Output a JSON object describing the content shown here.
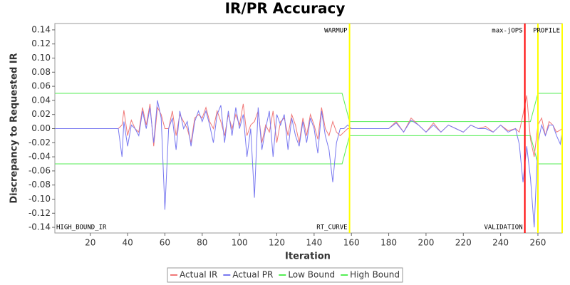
{
  "chart_data": {
    "type": "line",
    "title": "IR/PR Accuracy",
    "x_label": "Iteration",
    "y_label": "Discrepancy to Requested IR",
    "xlim": [
      1,
      273
    ],
    "ylim": [
      -0.148,
      0.149
    ],
    "xticks": [
      20,
      40,
      60,
      80,
      100,
      120,
      140,
      160,
      180,
      200,
      220,
      240,
      260
    ],
    "yticks": [
      {
        "value": -0.14,
        "label": "-0.14"
      },
      {
        "value": -0.12,
        "label": "-0.12"
      },
      {
        "value": -0.1,
        "label": "-0.10"
      },
      {
        "value": -0.08,
        "label": "-0.08"
      },
      {
        "value": -0.06,
        "label": "-0.06"
      },
      {
        "value": -0.04,
        "label": "-0.04"
      },
      {
        "value": -0.02,
        "label": "-0.02"
      },
      {
        "value": 0,
        "label": "0.00"
      },
      {
        "value": 0.02,
        "label": "0.02"
      },
      {
        "value": 0.04,
        "label": "0.04"
      },
      {
        "value": 0.06,
        "label": "0.06"
      },
      {
        "value": 0.08,
        "label": "0.08"
      },
      {
        "value": 0.1,
        "label": "0.10"
      },
      {
        "value": 0.12,
        "label": "0.12"
      },
      0.14
    ],
    "grid": false,
    "legend": "bottom",
    "markers": [
      {
        "x": 1,
        "bottom": "HIGH_BOUND_IR"
      },
      {
        "x": 159,
        "top": "WARMUP",
        "bottom": "RT_CURVE",
        "color": "#ffff00"
      },
      {
        "x": 253,
        "top": "max-jOPS",
        "bottom": "VALIDATION",
        "color": "#ff0000"
      },
      {
        "x": 260,
        "color": "#ffff00"
      },
      {
        "x": 273,
        "top": "PROFILE",
        "color": "#ffff00"
      }
    ],
    "series": [
      {
        "name": "Actual IR",
        "color": "#f07878",
        "x": [
          1,
          35,
          37,
          38,
          40,
          42,
          44,
          46,
          48,
          50,
          52,
          54,
          56,
          58,
          60,
          62,
          64,
          66,
          68,
          70,
          72,
          74,
          76,
          78,
          80,
          82,
          84,
          86,
          88,
          90,
          92,
          94,
          96,
          98,
          100,
          102,
          104,
          106,
          108,
          110,
          112,
          114,
          116,
          118,
          120,
          122,
          124,
          126,
          128,
          130,
          132,
          134,
          136,
          138,
          140,
          142,
          144,
          146,
          148,
          150,
          152,
          154,
          156,
          158,
          160,
          180,
          184,
          188,
          192,
          196,
          200,
          204,
          208,
          212,
          216,
          220,
          224,
          228,
          232,
          236,
          240,
          244,
          248,
          250,
          252,
          254,
          256,
          258,
          260,
          262,
          264,
          266,
          268,
          270,
          272,
          273
        ],
        "values": [
          0,
          0,
          0.005,
          0.026,
          -0.01,
          0.012,
          0,
          -0.005,
          0.03,
          0.005,
          0.035,
          -0.025,
          0.03,
          0.02,
          0,
          0,
          0.025,
          -0.01,
          0.02,
          0.01,
          0,
          -0.02,
          0.015,
          0.02,
          0.015,
          0.03,
          0.01,
          0,
          0.025,
          0.01,
          -0.01,
          0.02,
          0,
          0.02,
          0.005,
          0.035,
          -0.01,
          0.005,
          0.01,
          0.025,
          -0.02,
          0.005,
          -0.005,
          0.025,
          -0.02,
          0.01,
          0.015,
          -0.01,
          0.02,
          0.005,
          -0.02,
          0.015,
          -0.01,
          0.02,
          0.005,
          -0.015,
          0.03,
          0,
          -0.01,
          0.01,
          -0.005,
          -0.01,
          -0.005,
          0,
          0,
          0,
          0.01,
          -0.005,
          0.015,
          0.005,
          -0.005,
          0.008,
          -0.005,
          0.005,
          0,
          -0.005,
          0.005,
          0,
          0.003,
          -0.005,
          0.005,
          -0.003,
          0,
          -0.005,
          0.02,
          0.047,
          -0.015,
          -0.04,
          0.005,
          0.015,
          -0.01,
          0.01,
          0.005,
          -0.005,
          -0.002,
          0
        ]
      },
      {
        "name": "Actual PR",
        "color": "#7878f0",
        "x": [
          1,
          35,
          37,
          38,
          40,
          42,
          44,
          46,
          48,
          50,
          52,
          54,
          56,
          58,
          60,
          62,
          64,
          66,
          68,
          70,
          72,
          74,
          76,
          78,
          80,
          82,
          84,
          86,
          88,
          90,
          92,
          94,
          96,
          98,
          100,
          102,
          104,
          106,
          108,
          110,
          112,
          114,
          116,
          118,
          120,
          122,
          124,
          126,
          128,
          130,
          132,
          134,
          136,
          138,
          140,
          142,
          144,
          146,
          148,
          150,
          152,
          154,
          156,
          158,
          160,
          180,
          184,
          188,
          192,
          196,
          200,
          204,
          208,
          212,
          216,
          220,
          224,
          228,
          232,
          236,
          240,
          244,
          248,
          250,
          252,
          254,
          256,
          258,
          260,
          262,
          264,
          266,
          268,
          270,
          272,
          273
        ],
        "values": [
          0,
          0,
          -0.04,
          0.01,
          -0.025,
          0.005,
          0,
          -0.01,
          0.025,
          0,
          0.03,
          -0.02,
          0.04,
          0.015,
          -0.115,
          0,
          0.015,
          -0.03,
          0.025,
          0,
          0.01,
          -0.025,
          0.01,
          0.025,
          0.01,
          0.025,
          0.005,
          -0.02,
          0.02,
          0.033,
          -0.02,
          0.025,
          -0.01,
          0.03,
          0,
          0.02,
          -0.04,
          0,
          -0.098,
          0.03,
          -0.03,
          0,
          0.025,
          -0.04,
          0.02,
          0.005,
          0.02,
          -0.03,
          0.015,
          -0.01,
          -0.025,
          0.01,
          -0.02,
          0.015,
          0,
          -0.035,
          0.025,
          -0.01,
          -0.03,
          -0.076,
          -0.02,
          0,
          0,
          0.005,
          0,
          0,
          0.008,
          -0.005,
          0.012,
          0.005,
          -0.005,
          0.005,
          -0.005,
          0.005,
          0,
          -0.005,
          0.005,
          0,
          0,
          -0.005,
          0.005,
          -0.005,
          0,
          -0.022,
          -0.076,
          -0.025,
          -0.07,
          -0.14,
          -0.02,
          0.005,
          -0.01,
          0.005,
          0.005,
          -0.01,
          -0.022,
          -0.005
        ]
      },
      {
        "name": "Low Bound",
        "color": "#55ee55",
        "x": [
          1,
          155,
          159,
          256,
          260,
          273
        ],
        "values": [
          -0.05,
          -0.05,
          -0.01,
          -0.01,
          -0.05,
          -0.05
        ]
      },
      {
        "name": "High Bound",
        "color": "#55ee55",
        "x": [
          1,
          155,
          159,
          256,
          260,
          273
        ],
        "values": [
          0.05,
          0.05,
          0.01,
          0.01,
          0.05,
          0.05
        ]
      }
    ]
  }
}
